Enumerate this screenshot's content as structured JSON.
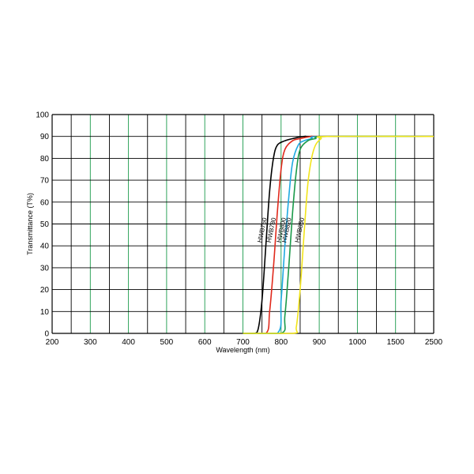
{
  "chart_data": {
    "type": "line",
    "xlabel": "Wavelength (nm)",
    "ylabel": "Transmittance (T%)",
    "x_ticks": [
      "200",
      "300",
      "400",
      "500",
      "600",
      "700",
      "800",
      "900",
      "1000",
      "1500",
      "2500"
    ],
    "y_ticks": [
      "0",
      "10",
      "20",
      "30",
      "40",
      "50",
      "60",
      "70",
      "80",
      "90",
      "100"
    ],
    "ylim": [
      0,
      100
    ],
    "grid": true,
    "series": [
      {
        "name": "HWB760",
        "color": "#000000",
        "x": [
          700,
          730,
          740,
          750,
          760,
          770,
          780,
          790,
          810,
          830,
          860,
          900,
          2500
        ],
        "y": [
          0,
          0,
          2,
          15,
          40,
          65,
          80,
          86,
          88,
          89,
          90,
          90,
          90
        ]
      },
      {
        "name": "HWB780",
        "color": "#e0291c",
        "x": [
          700,
          760,
          770,
          780,
          790,
          800,
          810,
          830,
          850,
          880,
          910,
          2500
        ],
        "y": [
          0,
          0,
          10,
          30,
          55,
          75,
          84,
          88,
          89,
          90,
          90,
          90
        ]
      },
      {
        "name": "HWB800",
        "color": "#1ea9e1",
        "x": [
          700,
          790,
          800,
          810,
          820,
          830,
          845,
          860,
          880,
          910,
          2500
        ],
        "y": [
          0,
          0,
          15,
          40,
          62,
          78,
          86,
          88,
          89,
          90,
          90
        ]
      },
      {
        "name": "HWB820",
        "color": "#1a9a4a",
        "x": [
          700,
          800,
          810,
          820,
          830,
          840,
          850,
          870,
          890,
          920,
          2500
        ],
        "y": [
          0,
          0,
          8,
          30,
          55,
          74,
          84,
          88,
          89,
          90,
          90
        ]
      },
      {
        "name": "HWB850",
        "color": "#f2e41a",
        "x": [
          700,
          830,
          840,
          850,
          860,
          870,
          880,
          890,
          905,
          920,
          2500
        ],
        "y": [
          0,
          0,
          3,
          20,
          45,
          68,
          80,
          86,
          89,
          90,
          90
        ]
      }
    ]
  }
}
